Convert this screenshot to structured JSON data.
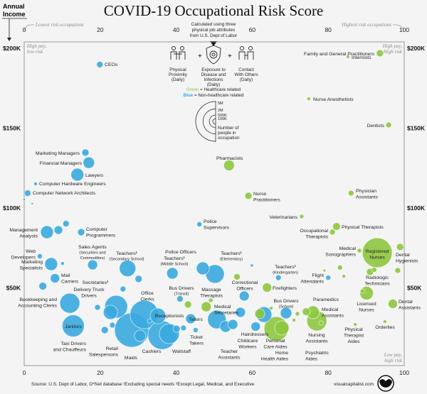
{
  "title": "COVID-19 Occupational Risk Score",
  "y_axis_title": [
    "Annual",
    "Income"
  ],
  "lowest_risk_note": "Lowest risk occupations",
  "highest_risk_note": "Highest risk occupations",
  "method_note": [
    "Calculated using three",
    "physical job attributes",
    "from U.S. Dept of Labor"
  ],
  "attributes": [
    {
      "icon": "people-proximity-icon",
      "label": [
        "Physical",
        "Proximity",
        "(Daily)"
      ]
    },
    {
      "icon": "virus-shield-icon",
      "label": [
        "Exposure to",
        "Disease and",
        "Infections",
        "(Daily)"
      ]
    },
    {
      "icon": "people-contact-icon",
      "label": [
        "Contact",
        "With Others",
        "(Daily)"
      ]
    }
  ],
  "plus": "+",
  "color_legend": {
    "green_word": "Green",
    "green_text": " = Healthcare related",
    "blue_word": "Blue",
    "blue_text": " = Non-healthcare related"
  },
  "size_legend": {
    "levels": [
      {
        "label": "5M",
        "people_k": 5000
      },
      {
        "label": "2M",
        "people_k": 2000
      },
      {
        "label": "500K",
        "people_k": 500
      },
      {
        "label": "100K",
        "people_k": 100
      }
    ],
    "caption": [
      "Number of",
      "people in",
      "occupation"
    ]
  },
  "corner_notes": {
    "top_left": [
      "High pay,",
      "low risk"
    ],
    "top_right": [
      "High pay,",
      "High risk"
    ],
    "bottom_right": [
      "Low pay,",
      "high risk"
    ]
  },
  "footer": {
    "source": "Source: U.S. Dept of Labor, O*Net database",
    "note1": "¹Excluding special needs",
    "note2": "²Except Legal, Medical, and Executive",
    "site": "visualcapitalist.com"
  },
  "chart_data": {
    "type": "scatter",
    "title": "COVID-19 Occupational Risk Score",
    "ylabel": "Annual Income",
    "xlim": [
      0,
      100
    ],
    "ylim": [
      0,
      200
    ],
    "x_ticks": [
      "0",
      "20",
      "40",
      "60",
      "80",
      "100"
    ],
    "y_ticks": [
      {
        "value": 200,
        "label": "$200K"
      },
      {
        "value": 150,
        "label": "$150K"
      },
      {
        "value": 100,
        "label": "$100K"
      },
      {
        "value": 50,
        "label": "$50K"
      }
    ],
    "size_unit": "people in occupation (thousands)",
    "colors": {
      "healthcare": "#8dc63f",
      "non_healthcare": "#3aaade"
    },
    "points": [
      {
        "x": 93.6,
        "y": 196.9,
        "people_k": 160,
        "cat": "healthcare",
        "label": [
          "Family and General Practitioners"
        ]
      },
      {
        "x": 85.2,
        "y": 194.7,
        "people_k": 40,
        "cat": "healthcare",
        "label": [
          "Internists"
        ]
      },
      {
        "x": 74.9,
        "y": 168.4,
        "people_k": 40,
        "cat": "healthcare",
        "label": [
          "Nurse Anesthetists"
        ]
      },
      {
        "x": 95.9,
        "y": 152.0,
        "people_k": 100,
        "cat": "healthcare",
        "label": [
          "Dentists"
        ]
      },
      {
        "x": 53.9,
        "y": 126.7,
        "people_k": 360,
        "cat": "healthcare",
        "label": [
          "Pharmacists"
        ]
      },
      {
        "x": 59.0,
        "y": 107.6,
        "people_k": 160,
        "cat": "healthcare",
        "label": [
          "Nurse",
          "Practitioners"
        ]
      },
      {
        "x": 86.0,
        "y": 109.3,
        "people_k": 100,
        "cat": "healthcare",
        "label": [
          "Physician",
          "Assistants"
        ]
      },
      {
        "x": 73.0,
        "y": 94.7,
        "people_k": 60,
        "cat": "healthcare",
        "label": [
          "Veterinarians"
        ]
      },
      {
        "x": 82.2,
        "y": 88.4,
        "people_k": 190,
        "cat": "healthcare",
        "label": [
          "Physical Therapists"
        ]
      },
      {
        "x": 81.1,
        "y": 84.9,
        "people_k": 100,
        "cat": "healthcare",
        "label": [
          "Occupational",
          "Therapists"
        ]
      },
      {
        "x": 88.2,
        "y": 73.3,
        "people_k": 60,
        "cat": "healthcare",
        "label": [
          "Medical",
          "Sonographers"
        ]
      },
      {
        "x": 92.9,
        "y": 72.0,
        "people_k": 2800,
        "cat": "healthcare",
        "label": [
          "Registered",
          "Nurses"
        ]
      },
      {
        "x": 98.9,
        "y": 75.6,
        "people_k": 160,
        "cat": "healthcare",
        "label": [
          "Dental",
          "Hygienists"
        ]
      },
      {
        "x": 79.0,
        "y": 60.9,
        "people_k": 25,
        "cat": "healthcare"
      },
      {
        "x": 83.1,
        "y": 62.7,
        "people_k": 80,
        "cat": "healthcare"
      },
      {
        "x": 84.1,
        "y": 57.3,
        "people_k": 40,
        "cat": "healthcare"
      },
      {
        "x": 91.0,
        "y": 60.0,
        "people_k": 160,
        "cat": "healthcare",
        "label": [
          "Radiologic",
          "Technicians"
        ]
      },
      {
        "x": 92.1,
        "y": 61.3,
        "people_k": 80,
        "cat": "healthcare"
      },
      {
        "x": 98.3,
        "y": 60.9,
        "people_k": 100,
        "cat": "healthcare"
      },
      {
        "x": 90.1,
        "y": 46.7,
        "people_k": 575,
        "cat": "healthcare",
        "label": [
          "Licensed",
          "Nurses"
        ]
      },
      {
        "x": 89.0,
        "y": 48.0,
        "people_k": 60,
        "cat": "healthcare"
      },
      {
        "x": 97.0,
        "y": 40.0,
        "people_k": 270,
        "cat": "healthcare",
        "label": [
          "Dental",
          "Assistants"
        ]
      },
      {
        "x": 76.0,
        "y": 34.7,
        "people_k": 520,
        "cat": "healthcare",
        "label": [
          "Medical",
          "Assistants"
        ]
      },
      {
        "x": 77.0,
        "y": 29.3,
        "people_k": 1250,
        "cat": "healthcare",
        "label": [
          "Nursing",
          "Assistants"
        ]
      },
      {
        "x": 74.2,
        "y": 35.1,
        "people_k": 190,
        "cat": "healthcare",
        "label": [
          "Paramedics"
        ]
      },
      {
        "x": 78.1,
        "y": 28.0,
        "people_k": 60,
        "cat": "healthcare"
      },
      {
        "x": 71.9,
        "y": 33.8,
        "people_k": 60,
        "cat": "healthcare"
      },
      {
        "x": 71.0,
        "y": 29.8,
        "people_k": 40,
        "cat": "healthcare",
        "label": [
          "Psychiatric",
          "Aides"
        ]
      },
      {
        "x": 66.3,
        "y": 24.4,
        "people_k": 1850,
        "cat": "healthcare",
        "label": [
          "Personal",
          "Care Aides"
        ]
      },
      {
        "x": 67.8,
        "y": 24.9,
        "people_k": 640,
        "cat": "healthcare",
        "label": [
          "Home",
          "Health Aides"
        ]
      },
      {
        "x": 87.1,
        "y": 27.1,
        "people_k": 40,
        "cat": "healthcare",
        "label": [
          "Physical",
          "Therapist",
          "Aides"
        ]
      },
      {
        "x": 94.9,
        "y": 28.9,
        "people_k": 40,
        "cat": "healthcare",
        "label": [
          "Orderlies"
        ]
      },
      {
        "x": 62.0,
        "y": 33.8,
        "people_k": 310,
        "cat": "healthcare"
      },
      {
        "x": 65.0,
        "y": 37.3,
        "people_k": 40,
        "cat": "healthcare"
      },
      {
        "x": 56.0,
        "y": 56.9,
        "people_k": 130,
        "cat": "healthcare"
      },
      {
        "x": 63.9,
        "y": 50.2,
        "people_k": 270,
        "cat": "healthcare"
      },
      {
        "x": 49.1,
        "y": 42.2,
        "people_k": 60,
        "cat": "healthcare",
        "label": [
          "Massage",
          "Therapists"
        ]
      },
      {
        "x": 47.9,
        "y": 38.2,
        "people_k": 310,
        "cat": "healthcare",
        "label": [
          "Medical",
          "Secretaries"
        ]
      },
      {
        "x": 43.1,
        "y": 39.6,
        "people_k": 160,
        "cat": "healthcare"
      },
      {
        "x": 19.9,
        "y": 189.8,
        "people_k": 130,
        "cat": "non_healthcare",
        "label": [
          "CEOs"
        ]
      },
      {
        "x": 16.1,
        "y": 134.7,
        "people_k": 160,
        "cat": "non_healthcare",
        "label": [
          "Marketing Managers"
        ]
      },
      {
        "x": 17.0,
        "y": 128.4,
        "people_k": 410,
        "cat": "non_healthcare",
        "label": [
          "Financial Managers"
        ]
      },
      {
        "x": 14.0,
        "y": 120.9,
        "people_k": 520,
        "cat": "non_healthcare",
        "label": [
          "Lawyers"
        ]
      },
      {
        "x": 3.0,
        "y": 115.1,
        "people_k": 40,
        "cat": "non_healthcare",
        "label": [
          "Computer Hardware Engineers"
        ]
      },
      {
        "x": 0.9,
        "y": 109.3,
        "people_k": 130,
        "cat": "non_healthcare",
        "label": [
          "Computer Network Architects"
        ]
      },
      {
        "x": 0.0,
        "y": 105.3,
        "people_k": 15,
        "cat": "non_healthcare"
      },
      {
        "x": 2.1,
        "y": 102.7,
        "people_k": 15,
        "cat": "non_healthcare"
      },
      {
        "x": 46.1,
        "y": 89.8,
        "people_k": 80,
        "cat": "non_healthcare",
        "label": [
          "Police",
          "Supervisors"
        ]
      },
      {
        "x": 6.0,
        "y": 84.9,
        "people_k": 520,
        "cat": "non_healthcare",
        "label": [
          "Management",
          "Analysts"
        ]
      },
      {
        "x": 9.0,
        "y": 86.2,
        "people_k": 230,
        "cat": "non_healthcare"
      },
      {
        "x": 11.0,
        "y": 90.2,
        "people_k": 130,
        "cat": "non_healthcare"
      },
      {
        "x": 15.0,
        "y": 84.9,
        "people_k": 160,
        "cat": "non_healthcare",
        "label": [
          "Computer",
          "Programmers"
        ]
      },
      {
        "x": 4.1,
        "y": 69.8,
        "people_k": 80,
        "cat": "non_healthcare",
        "label": [
          "Web",
          "Developers"
        ]
      },
      {
        "x": 7.1,
        "y": 64.9,
        "people_k": 520,
        "cat": "non_healthcare",
        "label": [
          "Marketing",
          "Specialists"
        ]
      },
      {
        "x": 10.1,
        "y": 65.3,
        "people_k": 40,
        "cat": "non_healthcare"
      },
      {
        "x": 8.1,
        "y": 56.0,
        "people_k": 270,
        "cat": "non_healthcare",
        "label": [
          "Mail",
          "Carriers"
        ]
      },
      {
        "x": 4.9,
        "y": 51.1,
        "people_k": 190,
        "cat": "non_healthcare"
      },
      {
        "x": 18.0,
        "y": 64.4,
        "people_k": 310,
        "cat": "non_healthcare",
        "label": [
          "Sales Agents",
          "(Securities and",
          "Commodities)"
        ]
      },
      {
        "x": 27.2,
        "y": 62.2,
        "people_k": 850,
        "cat": "non_healthcare",
        "label": [
          "Teachers¹",
          "(Secondary School)"
        ]
      },
      {
        "x": 30.1,
        "y": 55.6,
        "people_k": 160,
        "cat": "non_healthcare"
      },
      {
        "x": 26.0,
        "y": 49.3,
        "people_k": 100,
        "cat": "non_healthcare"
      },
      {
        "x": 12.0,
        "y": 40.4,
        "people_k": 1250,
        "cat": "non_healthcare",
        "label": [
          "Bookkeeping and",
          "Accounting Clerks"
        ]
      },
      {
        "x": 12.9,
        "y": 26.2,
        "people_k": 1530,
        "cat": "non_healthcare",
        "label": [
          "Janitors"
        ]
      },
      {
        "x": 24.2,
        "y": 38.2,
        "people_k": 1630,
        "cat": "non_healthcare",
        "label": [
          "Secretaries²"
        ]
      },
      {
        "x": 22.7,
        "y": 34.7,
        "people_k": 640,
        "cat": "non_healthcare",
        "label": [
          "Delivery Truck",
          "Drivers"
        ]
      },
      {
        "x": 19.3,
        "y": 37.8,
        "people_k": 100,
        "cat": "non_healthcare"
      },
      {
        "x": 21.2,
        "y": 23.6,
        "people_k": 160,
        "cat": "non_healthcare",
        "label": [
          "Taxi Drivers",
          "and Chauffeurs"
        ]
      },
      {
        "x": 23.2,
        "y": 26.7,
        "people_k": 100,
        "cat": "non_healthcare"
      },
      {
        "x": 28.3,
        "y": 23.6,
        "people_k": 3700,
        "cat": "non_healthcare",
        "label": [
          "Retail",
          "Salespersons"
        ]
      },
      {
        "x": 31.6,
        "y": 33.3,
        "people_k": 2550,
        "cat": "non_healthcare",
        "label": [
          "Office",
          "Clerks"
        ]
      },
      {
        "x": 36.3,
        "y": 20.4,
        "people_k": 2550,
        "cat": "non_healthcare",
        "label": [
          "Cashiers"
        ]
      },
      {
        "x": 30.5,
        "y": 20.0,
        "people_k": 410,
        "cat": "non_healthcare",
        "label": [
          "Maids"
        ]
      },
      {
        "x": 35.2,
        "y": 32.4,
        "people_k": 770,
        "cat": "non_healthcare",
        "label": [
          "Receptionists"
        ]
      },
      {
        "x": 38.2,
        "y": 21.3,
        "people_k": 1250,
        "cat": "non_healthcare",
        "label": [
          "Waitstaff"
        ]
      },
      {
        "x": 33.0,
        "y": 29.3,
        "people_k": 60,
        "cat": "non_healthcare"
      },
      {
        "x": 40.1,
        "y": 24.4,
        "people_k": 160,
        "cat": "non_healthcare"
      },
      {
        "x": 41.9,
        "y": 24.9,
        "people_k": 100,
        "cat": "non_healthcare"
      },
      {
        "x": 43.8,
        "y": 30.7,
        "people_k": 310,
        "cat": "non_healthcare",
        "label": [
          "Tellers"
        ]
      },
      {
        "x": 45.1,
        "y": 23.6,
        "people_k": 80,
        "cat": "non_healthcare",
        "label": [
          "Ticket",
          "Takers"
        ]
      },
      {
        "x": 39.0,
        "y": 59.1,
        "people_k": 410,
        "cat": "non_healthcare",
        "label": [
          "Teachers¹",
          "(Middle School)"
        ]
      },
      {
        "x": 41.0,
        "y": 43.1,
        "people_k": 130,
        "cat": "non_healthcare",
        "label": [
          "Bus Drivers",
          "(Transit)"
        ]
      },
      {
        "x": 47.0,
        "y": 62.2,
        "people_k": 520,
        "cat": "non_healthcare",
        "label": [
          "Police Officers"
        ]
      },
      {
        "x": 50.2,
        "y": 58.7,
        "people_k": 1080,
        "cat": "non_healthcare",
        "label": [
          "Teachers¹",
          "(Elementary)"
        ]
      },
      {
        "x": 57.9,
        "y": 44.9,
        "people_k": 310,
        "cat": "non_healthcare",
        "label": [
          "Correctional",
          "Officers"
        ]
      },
      {
        "x": 56.9,
        "y": 34.7,
        "people_k": 310,
        "cat": "non_healthcare"
      },
      {
        "x": 50.7,
        "y": 30.2,
        "people_k": 1080,
        "cat": "non_healthcare",
        "label": [
          "Teacher",
          "Assistants"
        ]
      },
      {
        "x": 53.0,
        "y": 25.8,
        "people_k": 410,
        "cat": "non_healthcare"
      },
      {
        "x": 54.9,
        "y": 27.1,
        "people_k": 310,
        "cat": "non_healthcare",
        "label": [
          "Childcare",
          "Workers"
        ]
      },
      {
        "x": 60.9,
        "y": 25.8,
        "people_k": 270,
        "cat": "non_healthcare",
        "label": [
          "Hairdressers"
        ]
      },
      {
        "x": 68.9,
        "y": 34.2,
        "people_k": 410,
        "cat": "non_healthcare",
        "label": [
          "Bus Drivers",
          "(School)"
        ]
      },
      {
        "x": 63.1,
        "y": 33.3,
        "people_k": 770,
        "cat": "non_healthcare"
      },
      {
        "x": 66.9,
        "y": 56.4,
        "people_k": 100,
        "cat": "non_healthcare",
        "label": [
          "Teachers¹",
          "(Kindergarten)"
        ]
      },
      {
        "x": 59.9,
        "y": 64.0,
        "people_k": 25,
        "cat": "non_healthcare"
      },
      {
        "x": 80.0,
        "y": 56.4,
        "people_k": 80,
        "cat": "non_healthcare",
        "label": [
          "Flight",
          "Attendants"
        ]
      },
      {
        "x": 63.9,
        "y": 50.2,
        "people_k": 1,
        "cat": "non_healthcare",
        "label": [
          "Firefighters"
        ]
      }
    ]
  }
}
